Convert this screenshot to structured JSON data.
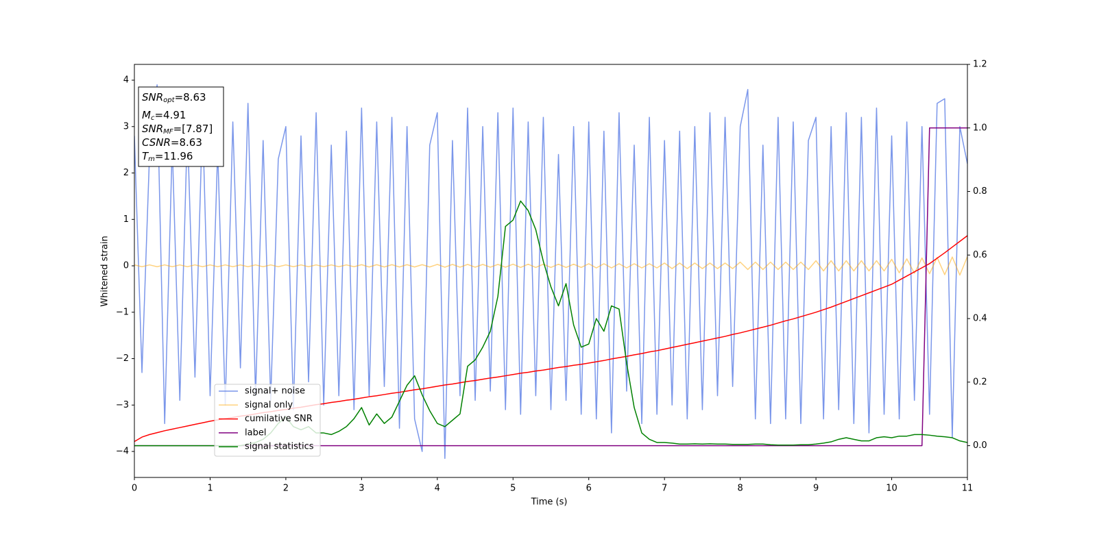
{
  "chart_data": {
    "type": "line",
    "xlabel": "Time (s)",
    "ylabel": "Whitened strain",
    "xlim": [
      0,
      11
    ],
    "xticks": [
      0,
      1,
      2,
      3,
      4,
      5,
      6,
      7,
      8,
      9,
      10,
      11
    ],
    "ylim": [
      -4.56,
      4.34
    ],
    "yticks": [
      {
        "value": -4,
        "label": "−4"
      },
      {
        "value": -3,
        "label": "−3"
      },
      {
        "value": -2,
        "label": "−2"
      },
      {
        "value": -1,
        "label": "−1"
      },
      0,
      1,
      2,
      3,
      4
    ],
    "y2lim": [
      -0.1,
      1.2
    ],
    "y2ticks": [
      {
        "value": 0,
        "label": "0.0"
      },
      {
        "value": 0.2,
        "label": "0.2"
      },
      {
        "value": 0.4,
        "label": "0.4"
      },
      {
        "value": 0.6,
        "label": "0.6"
      },
      {
        "value": 0.8,
        "label": "0.8"
      },
      {
        "value": 1,
        "label": "1.0"
      },
      {
        "value": 1.2,
        "label": "1.2"
      }
    ],
    "annotations": [
      {
        "symbol": "SNR",
        "subscript": "opt",
        "text": "=8.63"
      },
      {
        "symbol": "M",
        "subscript": "c",
        "text": "=4.91"
      },
      {
        "symbol": "SNR",
        "subscript": "MF",
        "text": "=[7.87]"
      },
      {
        "symbol": "CSNR",
        "text": "=8.63"
      },
      {
        "symbol": "T",
        "subscript": "m",
        "text": "=11.96"
      }
    ],
    "x": [
      0,
      0.1,
      0.2,
      0.3,
      0.4,
      0.5,
      0.6,
      0.7,
      0.8,
      0.9,
      1,
      1.1,
      1.2,
      1.3,
      1.4,
      1.5,
      1.6,
      1.7,
      1.8,
      1.9,
      2,
      2.1,
      2.2,
      2.3,
      2.4,
      2.5,
      2.6,
      2.7,
      2.8,
      2.9,
      3,
      3.1,
      3.2,
      3.3,
      3.4,
      3.5,
      3.6,
      3.7,
      3.8,
      3.9,
      4,
      4.1,
      4.2,
      4.3,
      4.4,
      4.5,
      4.6,
      4.7,
      4.8,
      4.9,
      5,
      5.1,
      5.2,
      5.3,
      5.4,
      5.5,
      5.6,
      5.7,
      5.8,
      5.9,
      6,
      6.1,
      6.2,
      6.3,
      6.4,
      6.5,
      6.6,
      6.7,
      6.8,
      6.9,
      7,
      7.1,
      7.2,
      7.3,
      7.4,
      7.5,
      7.6,
      7.7,
      7.8,
      7.9,
      8,
      8.1,
      8.2,
      8.3,
      8.4,
      8.5,
      8.6,
      8.7,
      8.8,
      8.9,
      9,
      9.1,
      9.2,
      9.3,
      9.4,
      9.5,
      9.6,
      9.7,
      9.8,
      9.9,
      10,
      10.1,
      10.2,
      10.3,
      10.4,
      10.5,
      10.6,
      10.7,
      10.8,
      10.9,
      11
    ],
    "series": [
      {
        "name": "signal+ noise",
        "color": "#4169e1",
        "opacity": 0.7,
        "values": [
          2.8,
          -2.3,
          2.4,
          3.9,
          -3.4,
          2.6,
          -2.9,
          3.0,
          -2.4,
          3.2,
          -2.8,
          2.5,
          -3.0,
          3.1,
          -2.2,
          3.5,
          -2.8,
          2.7,
          -2.9,
          2.3,
          3.0,
          -3.1,
          2.8,
          -2.5,
          3.3,
          -3.0,
          2.6,
          -2.8,
          2.9,
          -3.1,
          3.4,
          -2.8,
          3.1,
          -2.6,
          3.2,
          -3.5,
          3.0,
          -3.3,
          -4.0,
          2.6,
          3.3,
          -4.15,
          2.7,
          -2.8,
          3.4,
          -2.9,
          3.0,
          -2.7,
          3.3,
          -3.1,
          3.4,
          -3.2,
          3.1,
          -2.8,
          3.2,
          -3.1,
          2.4,
          -2.9,
          3.0,
          -3.2,
          3.1,
          -3.3,
          2.9,
          -3.6,
          3.3,
          -2.7,
          2.6,
          -3.4,
          3.2,
          -3.2,
          2.7,
          -3.0,
          2.9,
          -3.3,
          3.0,
          -3.1,
          3.3,
          -2.8,
          3.2,
          -2.6,
          3.0,
          3.8,
          -3.3,
          2.6,
          -3.4,
          3.2,
          -3.3,
          3.1,
          -3.4,
          2.7,
          3.2,
          -3.3,
          3.0,
          -3.1,
          3.3,
          -3.4,
          3.2,
          -3.6,
          3.4,
          -3.2,
          2.8,
          -3.3,
          3.1,
          -2.9,
          3.0,
          -3.2,
          3.5,
          3.6,
          -3.7,
          3.0,
          2.2
        ]
      },
      {
        "name": "signal only",
        "color": "#ffa500",
        "opacity": 0.5,
        "values": [
          0.02,
          -0.02,
          0.02,
          -0.02,
          0.02,
          -0.02,
          0.02,
          -0.02,
          0.02,
          -0.02,
          0.02,
          -0.02,
          0.02,
          -0.02,
          0.02,
          -0.02,
          0.02,
          -0.02,
          0.02,
          -0.02,
          0.02,
          -0.02,
          0.02,
          -0.02,
          0.02,
          -0.02,
          0.02,
          -0.02,
          0.02,
          -0.02,
          0.025,
          -0.025,
          0.025,
          -0.025,
          0.025,
          -0.025,
          0.025,
          -0.025,
          0.025,
          -0.025,
          0.03,
          -0.03,
          0.03,
          -0.03,
          0.03,
          -0.03,
          0.03,
          -0.03,
          0.03,
          -0.03,
          0.035,
          -0.035,
          0.035,
          -0.035,
          0.035,
          -0.035,
          0.035,
          -0.035,
          0.035,
          -0.035,
          0.045,
          -0.045,
          0.045,
          -0.045,
          0.045,
          -0.045,
          0.045,
          -0.045,
          0.045,
          -0.045,
          0.06,
          -0.06,
          0.06,
          -0.06,
          0.06,
          -0.06,
          0.06,
          -0.06,
          0.06,
          -0.06,
          0.08,
          -0.08,
          0.08,
          -0.08,
          0.08,
          -0.08,
          0.08,
          -0.08,
          0.08,
          -0.08,
          0.11,
          -0.11,
          0.11,
          -0.11,
          0.11,
          -0.11,
          0.11,
          -0.11,
          0.11,
          -0.11,
          0.14,
          -0.15,
          0.15,
          -0.16,
          0.17,
          -0.17,
          0.18,
          -0.19,
          0.19,
          -0.2,
          0.2
        ]
      },
      {
        "name": "cumilative SNR",
        "color": "#ff0000",
        "axis": "y2",
        "values": [
          0.013,
          0.027,
          0.035,
          0.041,
          0.047,
          0.052,
          0.057,
          0.062,
          0.067,
          0.072,
          0.077,
          0.081,
          0.085,
          0.089,
          0.093,
          0.096,
          0.1,
          0.104,
          0.107,
          0.111,
          0.114,
          0.118,
          0.121,
          0.125,
          0.129,
          0.132,
          0.136,
          0.139,
          0.143,
          0.146,
          0.15,
          0.154,
          0.157,
          0.161,
          0.165,
          0.168,
          0.172,
          0.176,
          0.179,
          0.183,
          0.187,
          0.191,
          0.194,
          0.198,
          0.202,
          0.205,
          0.209,
          0.213,
          0.216,
          0.22,
          0.224,
          0.228,
          0.231,
          0.235,
          0.238,
          0.242,
          0.246,
          0.249,
          0.253,
          0.256,
          0.26,
          0.264,
          0.268,
          0.273,
          0.277,
          0.281,
          0.286,
          0.29,
          0.295,
          0.299,
          0.304,
          0.309,
          0.314,
          0.319,
          0.324,
          0.329,
          0.334,
          0.339,
          0.344,
          0.35,
          0.355,
          0.361,
          0.367,
          0.373,
          0.379,
          0.386,
          0.393,
          0.399,
          0.406,
          0.413,
          0.42,
          0.428,
          0.436,
          0.445,
          0.454,
          0.463,
          0.472,
          0.481,
          0.49,
          0.499,
          0.508,
          0.521,
          0.534,
          0.547,
          0.56,
          0.573,
          0.59,
          0.607,
          0.625,
          0.643,
          0.661
        ]
      },
      {
        "name": "label",
        "color": "#800080",
        "axis": "y2",
        "values": [
          0,
          0,
          0,
          0,
          0,
          0,
          0,
          0,
          0,
          0,
          0,
          0,
          0,
          0,
          0,
          0,
          0,
          0,
          0,
          0,
          0,
          0,
          0,
          0,
          0,
          0,
          0,
          0,
          0,
          0,
          0,
          0,
          0,
          0,
          0,
          0,
          0,
          0,
          0,
          0,
          0,
          0,
          0,
          0,
          0,
          0,
          0,
          0,
          0,
          0,
          0,
          0,
          0,
          0,
          0,
          0,
          0,
          0,
          0,
          0,
          0,
          0,
          0,
          0,
          0,
          0,
          0,
          0,
          0,
          0,
          0,
          0,
          0,
          0,
          0,
          0,
          0,
          0,
          0,
          0,
          0,
          0,
          0,
          0,
          0,
          0,
          0,
          0,
          0,
          0,
          0,
          0,
          0,
          0,
          0,
          0,
          0,
          0,
          0,
          0,
          0,
          0,
          0,
          0,
          0,
          1,
          1,
          1,
          1,
          1,
          1
        ]
      },
      {
        "name": "signal statistics",
        "color": "#008000",
        "axis": "y2",
        "values": [
          0,
          0,
          0,
          0,
          0,
          0,
          0,
          0,
          0,
          0,
          0,
          0,
          0,
          0,
          0,
          0.005,
          0.01,
          0.02,
          0.04,
          0.07,
          0.09,
          0.06,
          0.05,
          0.06,
          0.04,
          0.04,
          0.035,
          0.045,
          0.06,
          0.085,
          0.12,
          0.065,
          0.1,
          0.07,
          0.09,
          0.14,
          0.19,
          0.22,
          0.16,
          0.11,
          0.07,
          0.06,
          0.08,
          0.1,
          0.25,
          0.27,
          0.31,
          0.36,
          0.47,
          0.69,
          0.71,
          0.77,
          0.74,
          0.68,
          0.58,
          0.5,
          0.44,
          0.51,
          0.38,
          0.31,
          0.32,
          0.4,
          0.36,
          0.44,
          0.43,
          0.26,
          0.12,
          0.04,
          0.02,
          0.01,
          0.01,
          0.008,
          0.005,
          0.005,
          0.006,
          0.005,
          0.006,
          0.005,
          0.005,
          0.004,
          0.004,
          0.004,
          0.005,
          0.005,
          0.003,
          0.002,
          0.002,
          0.002,
          0.003,
          0.003,
          0.005,
          0.008,
          0.012,
          0.02,
          0.025,
          0.02,
          0.015,
          0.015,
          0.025,
          0.028,
          0.025,
          0.03,
          0.03,
          0.035,
          0.035,
          0.033,
          0.03,
          0.028,
          0.025,
          0.015,
          0.01
        ]
      }
    ]
  }
}
